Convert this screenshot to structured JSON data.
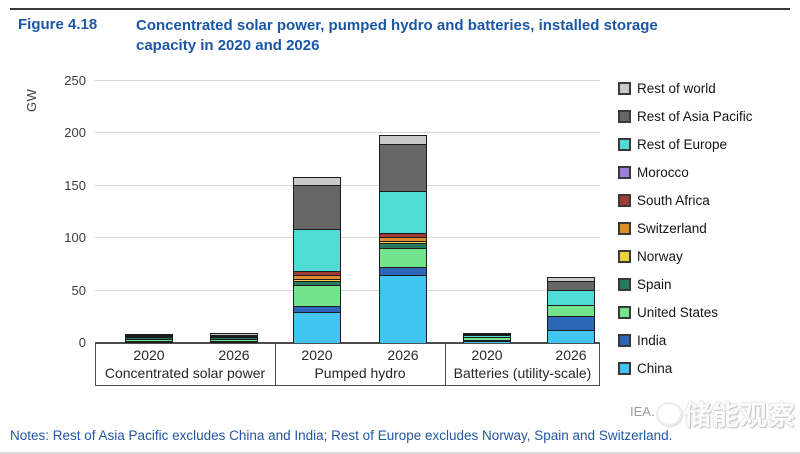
{
  "figure": {
    "label": "Figure 4.18",
    "title": "Concentrated solar power, pumped hydro and batteries, installed storage capacity in 2020 and 2026"
  },
  "notes": "Notes: Rest of Asia Pacific excludes China and India; Rest of Europe excludes Norway, Spain and Switzerland.",
  "attribution": "IEA.",
  "watermark": "储能观察",
  "chart_data": {
    "type": "bar",
    "stacked": true,
    "title": "Concentrated solar power, pumped hydro and batteries, installed storage capacity in 2020 and 2026",
    "xlabel": "",
    "ylabel": "GW",
    "ylim": [
      0,
      250
    ],
    "yticks": [
      0,
      50,
      100,
      150,
      200,
      250
    ],
    "grid": true,
    "legend_position": "right",
    "groups": [
      {
        "label": "Concentrated solar power",
        "years": [
          "2020",
          "2026"
        ]
      },
      {
        "label": "Pumped hydro",
        "years": [
          "2020",
          "2026"
        ]
      },
      {
        "label": "Batteries (utility-scale)",
        "years": [
          "2020",
          "2026"
        ]
      }
    ],
    "columns": [
      "Concentrated solar power 2020",
      "Concentrated solar power 2026",
      "Pumped hydro 2020",
      "Pumped hydro 2026",
      "Batteries (utility-scale) 2020",
      "Batteries (utility-scale) 2026"
    ],
    "series": [
      {
        "name": "China",
        "color": "#41c6f2",
        "values": [
          0.4,
          1.0,
          30,
          65,
          2.0,
          12
        ]
      },
      {
        "name": "India",
        "color": "#2d66b8",
        "values": [
          0.2,
          0.3,
          5,
          8,
          0.3,
          14
        ]
      },
      {
        "name": "United States",
        "color": "#74e48c",
        "values": [
          1.7,
          1.8,
          20,
          18,
          2.5,
          10
        ]
      },
      {
        "name": "Spain",
        "color": "#28795f",
        "values": [
          2.3,
          2.3,
          4,
          4,
          0,
          0
        ]
      },
      {
        "name": "Norway",
        "color": "#edd13f",
        "values": [
          0,
          0,
          2,
          2,
          0,
          0
        ]
      },
      {
        "name": "Switzerland",
        "color": "#df8b33",
        "values": [
          0,
          0,
          4,
          4,
          0,
          0
        ]
      },
      {
        "name": "South Africa",
        "color": "#a03b35",
        "values": [
          0.5,
          0.6,
          4,
          4,
          0,
          0
        ]
      },
      {
        "name": "Morocco",
        "color": "#9c80d8",
        "values": [
          0.5,
          0.8,
          0,
          0,
          0,
          0
        ]
      },
      {
        "name": "Rest of Europe",
        "color": "#4fdbd6",
        "values": [
          0,
          0,
          40,
          40,
          2.0,
          15
        ]
      },
      {
        "name": "Rest of Asia Pacific",
        "color": "#666666",
        "values": [
          0,
          0,
          42,
          45,
          1.2,
          8
        ]
      },
      {
        "name": "Rest of world",
        "color": "#c9c9c9",
        "values": [
          1.0,
          1.8,
          7,
          9,
          1.0,
          4
        ]
      }
    ],
    "totals_gw": [
      6.6,
      8.6,
      158,
      199,
      9,
      63
    ],
    "legend_order_top_to_bottom": [
      "Rest of world",
      "Rest of Asia Pacific",
      "Rest of Europe",
      "Morocco",
      "South Africa",
      "Switzerland",
      "Norway",
      "Spain",
      "United States",
      "India",
      "China"
    ]
  }
}
